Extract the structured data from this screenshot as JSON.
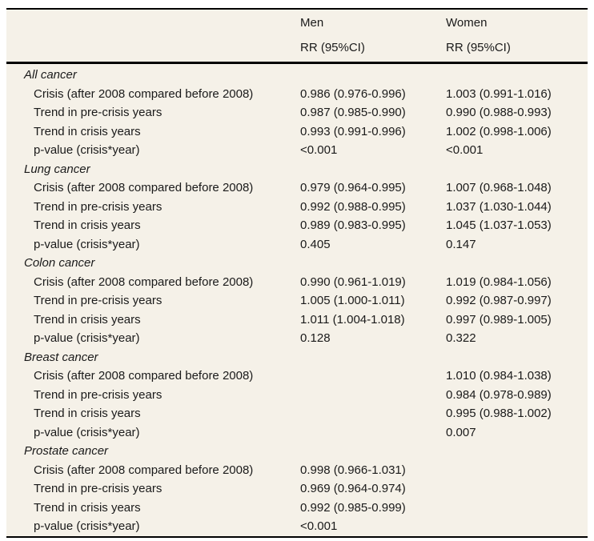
{
  "table": {
    "colors": {
      "table_background": "#f5f1e8",
      "rule": "#000000",
      "text": "#1a1a1a",
      "page_background": "#ffffff"
    },
    "columns": [
      {
        "label": "Men",
        "sublabel": "RR (95%CI)"
      },
      {
        "label": "Women",
        "sublabel": "RR (95%CI)"
      }
    ],
    "sections": [
      {
        "name": "All cancer",
        "rows": [
          {
            "label": "Crisis (after 2008 compared before 2008)",
            "men": "0.986 (0.976-0.996)",
            "women": "1.003 (0.991-1.016)"
          },
          {
            "label": "Trend in pre-crisis years",
            "men": "0.987 (0.985-0.990)",
            "women": "0.990 (0.988-0.993)"
          },
          {
            "label": "Trend in crisis years",
            "men": "0.993 (0.991-0.996)",
            "women": "1.002 (0.998-1.006)"
          },
          {
            "label": "p-value (crisis*year)",
            "men": "<0.001",
            "women": "<0.001"
          }
        ]
      },
      {
        "name": "Lung cancer",
        "rows": [
          {
            "label": "Crisis (after 2008 compared before 2008)",
            "men": "0.979 (0.964-0.995)",
            "women": "1.007 (0.968-1.048)"
          },
          {
            "label": "Trend in pre-crisis years",
            "men": "0.992 (0.988-0.995)",
            "women": "1.037 (1.030-1.044)"
          },
          {
            "label": "Trend in crisis years",
            "men": "0.989 (0.983-0.995)",
            "women": "1.045 (1.037-1.053)"
          },
          {
            "label": "p-value (crisis*year)",
            "men": "0.405",
            "women": "0.147"
          }
        ]
      },
      {
        "name": "Colon cancer",
        "rows": [
          {
            "label": "Crisis (after 2008 compared before 2008)",
            "men": "0.990 (0.961-1.019)",
            "women": "1.019 (0.984-1.056)"
          },
          {
            "label": "Trend in pre-crisis years",
            "men": "1.005 (1.000-1.011)",
            "women": "0.992 (0.987-0.997)"
          },
          {
            "label": "Trend in crisis years",
            "men": "1.011 (1.004-1.018)",
            "women": "0.997 (0.989-1.005)"
          },
          {
            "label": "p-value (crisis*year)",
            "men": "0.128",
            "women": "0.322"
          }
        ]
      },
      {
        "name": "Breast cancer",
        "rows": [
          {
            "label": "Crisis (after 2008 compared before 2008)",
            "men": "",
            "women": "1.010 (0.984-1.038)"
          },
          {
            "label": "Trend in pre-crisis years",
            "men": "",
            "women": "0.984 (0.978-0.989)"
          },
          {
            "label": "Trend in crisis years",
            "men": "",
            "women": "0.995 (0.988-1.002)"
          },
          {
            "label": "p-value (crisis*year)",
            "men": "",
            "women": "0.007"
          }
        ]
      },
      {
        "name": "Prostate cancer",
        "rows": [
          {
            "label": "Crisis (after 2008 compared before 2008)",
            "men": "0.998 (0.966-1.031)",
            "women": ""
          },
          {
            "label": "Trend in pre-crisis years",
            "men": "0.969 (0.964-0.974)",
            "women": ""
          },
          {
            "label": "Trend in crisis years",
            "men": "0.992 (0.985-0.999)",
            "women": ""
          },
          {
            "label": "p-value (crisis*year)",
            "men": "<0.001",
            "women": ""
          }
        ]
      }
    ]
  }
}
